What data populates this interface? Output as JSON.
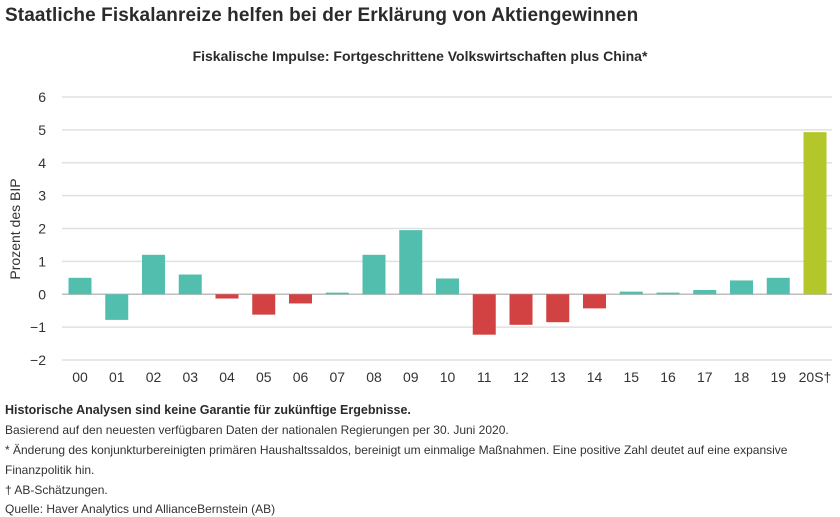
{
  "title": "Staatliche Fiskalanreize helfen bei der Erklärung von Aktiengewinnen",
  "chart_data": {
    "type": "bar",
    "title": "Fiskalische Impulse: Fortgeschrittene Volkswirtschaften plus China*",
    "xlabel": "",
    "ylabel": "Prozent des BIP",
    "ylim": [
      -2,
      6
    ],
    "yticks": [
      6,
      5,
      4,
      3,
      2,
      1,
      0,
      -1,
      -2
    ],
    "ytick_labels": [
      "6",
      "5",
      "4",
      "3",
      "2",
      "1",
      "0",
      "−1",
      "−2"
    ],
    "grid": true,
    "categories": [
      "00",
      "01",
      "02",
      "03",
      "04",
      "05",
      "06",
      "07",
      "08",
      "09",
      "10",
      "11",
      "12",
      "13",
      "14",
      "15",
      "16",
      "17",
      "18",
      "19",
      "20S†"
    ],
    "values": [
      0.5,
      -0.78,
      1.2,
      0.6,
      -0.13,
      -0.62,
      -0.28,
      0.05,
      1.2,
      1.95,
      0.48,
      -1.23,
      -0.93,
      -0.85,
      -0.43,
      0.08,
      0.05,
      0.13,
      0.42,
      0.5,
      4.93
    ],
    "bar_colors": [
      "#52bfae",
      "#52bfae",
      "#52bfae",
      "#52bfae",
      "#d24242",
      "#d24242",
      "#d24242",
      "#52bfae",
      "#52bfae",
      "#52bfae",
      "#52bfae",
      "#d24242",
      "#d24242",
      "#d24242",
      "#d24242",
      "#52bfae",
      "#52bfae",
      "#52bfae",
      "#52bfae",
      "#52bfae",
      "#b3c62a"
    ]
  },
  "footer": {
    "disclaimer": "Historische Analysen sind keine Garantie für zukünftige Ergebnisse.",
    "basis": "Basierend auf den neuesten verfügbaren Daten der nationalen Regierungen per 30. Juni 2020.",
    "note_star_1": "* Änderung des konjunkturbereinigten primären Haushaltssaldos, bereinigt um einmalige Maßnahmen. Eine positive Zahl deutet auf eine expansive",
    "note_star_2": "Finanzpolitik hin.",
    "note_dagger": "† AB-Schätzungen.",
    "source": "Quelle: Haver Analytics und AllianceBernstein (AB)"
  }
}
